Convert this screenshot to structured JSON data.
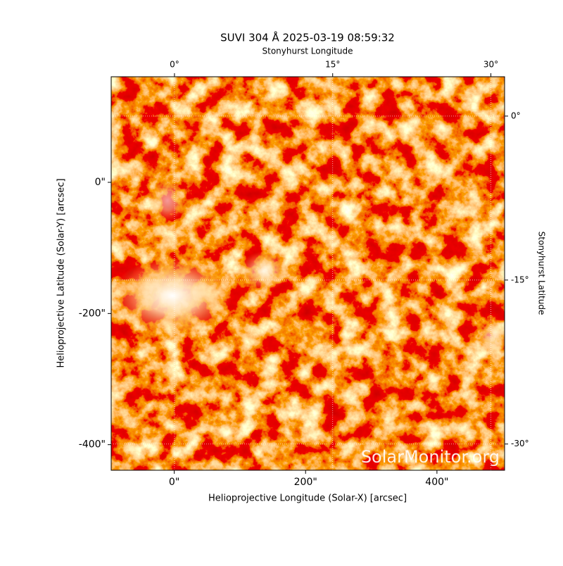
{
  "chart_data": {
    "type": "image",
    "title": "SUVI 304 Å 2025-03-19 08:59:32",
    "xlabel": "Helioprojective Longitude (Solar-X) [arcsec]",
    "ylabel": "Helioprojective Latitude (Solar-Y) [arcsec]",
    "x2label": "Stonyhurst Longitude",
    "y2label": "Stonyhurst Latitude",
    "watermark": "SolarMonitor.org",
    "xlim": [
      -96,
      503
    ],
    "ylim": [
      -439,
      161
    ],
    "xticks": [
      {
        "value": 0,
        "label": "0\""
      },
      {
        "value": 200,
        "label": "200\""
      },
      {
        "value": 400,
        "label": "400\""
      }
    ],
    "yticks": [
      {
        "value": 0,
        "label": "0\""
      },
      {
        "value": -200,
        "label": "-200\""
      },
      {
        "value": -400,
        "label": "-400\""
      }
    ],
    "x2lim": [
      -6,
      31.3
    ],
    "x2ticks": [
      {
        "value": 0,
        "label": "0°"
      },
      {
        "value": 15,
        "label": "15°"
      },
      {
        "value": 30,
        "label": "30°"
      }
    ],
    "y2lim": [
      -32.4,
      3.6
    ],
    "y2ticks": [
      {
        "value": 0,
        "label": "0°"
      },
      {
        "value": -15,
        "label": "-15°"
      },
      {
        "value": -30,
        "label": "-30°"
      }
    ],
    "grid": true
  }
}
